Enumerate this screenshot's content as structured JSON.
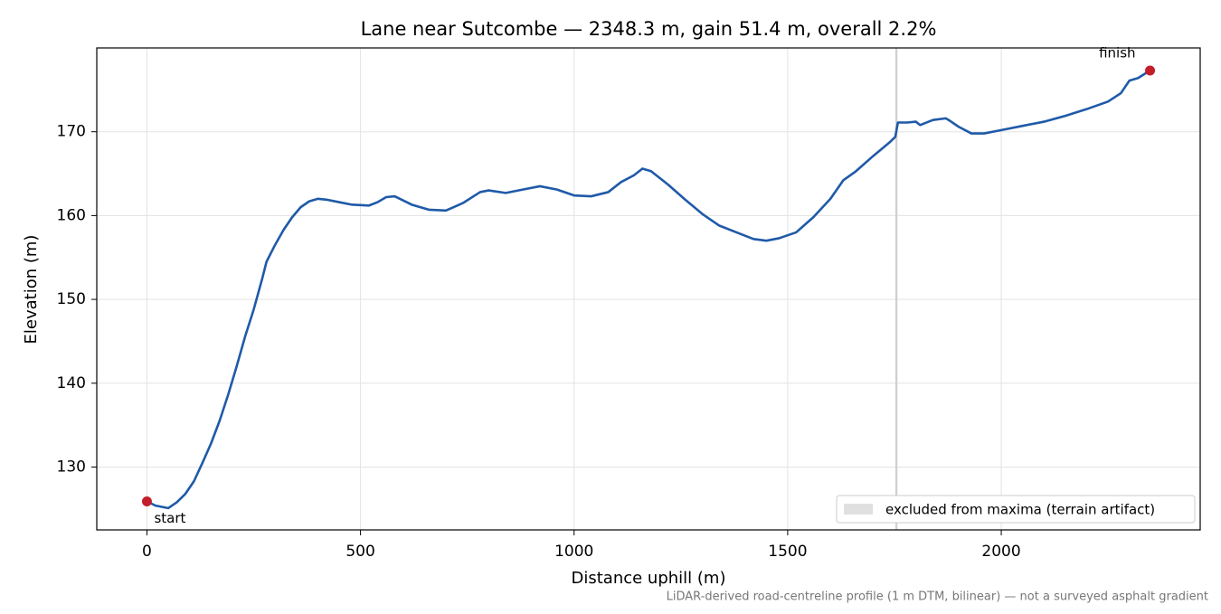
{
  "chart_data": {
    "type": "line",
    "title": "Lane near Sutcombe — 2348.3 m, gain 51.4 m, overall 2.2%",
    "xlabel": "Distance uphill (m)",
    "ylabel": "Elevation (m)",
    "footnote": "LiDAR-derived road-centreline profile (1 m DTM, bilinear) — not a surveyed asphalt gradient",
    "xlim": [
      -117.4,
      2465.7
    ],
    "ylim": [
      122.5,
      180.0
    ],
    "xticks": [
      0,
      500,
      1000,
      1500,
      2000
    ],
    "yticks": [
      130,
      140,
      150,
      160,
      170
    ],
    "grid": true,
    "legend": "lower right",
    "series": [
      {
        "name": "elevation",
        "color": "#1f5aa8",
        "x": [
          0,
          20,
          40,
          50,
          70,
          90,
          110,
          130,
          150,
          170,
          190,
          210,
          230,
          250,
          270,
          280,
          300,
          320,
          340,
          360,
          380,
          400,
          420,
          450,
          480,
          520,
          540,
          560,
          580,
          600,
          620,
          660,
          700,
          740,
          780,
          800,
          840,
          880,
          920,
          960,
          1000,
          1040,
          1080,
          1110,
          1140,
          1160,
          1180,
          1220,
          1260,
          1300,
          1340,
          1380,
          1420,
          1450,
          1480,
          1520,
          1560,
          1600,
          1630,
          1660,
          1700,
          1740,
          1752,
          1758,
          1780,
          1800,
          1810,
          1840,
          1870,
          1880,
          1900,
          1930,
          1960,
          2000,
          2050,
          2100,
          2150,
          2200,
          2250,
          2280,
          2300,
          2320,
          2348.3
        ],
        "values": [
          125.9,
          125.4,
          125.2,
          125.1,
          125.8,
          126.8,
          128.3,
          130.5,
          132.8,
          135.5,
          138.6,
          142.0,
          145.6,
          148.8,
          152.5,
          154.5,
          156.5,
          158.3,
          159.8,
          161.0,
          161.7,
          162.0,
          161.9,
          161.6,
          161.3,
          161.2,
          161.6,
          162.2,
          162.3,
          161.8,
          161.3,
          160.7,
          160.6,
          161.5,
          162.8,
          163.0,
          162.7,
          163.1,
          163.5,
          163.1,
          162.4,
          162.3,
          162.8,
          164.0,
          164.8,
          165.6,
          165.3,
          163.7,
          161.9,
          160.2,
          158.8,
          158.0,
          157.2,
          157.0,
          157.3,
          158.0,
          159.8,
          162.0,
          164.2,
          165.3,
          167.1,
          168.8,
          169.4,
          171.1,
          171.1,
          171.2,
          170.8,
          171.4,
          171.6,
          171.3,
          170.6,
          169.8,
          169.8,
          170.2,
          170.7,
          171.2,
          171.9,
          172.7,
          173.6,
          174.6,
          176.1,
          176.4,
          177.3
        ]
      }
    ],
    "points": [
      {
        "label": "start",
        "x": 0,
        "y": 125.9,
        "color": "#c41e2a"
      },
      {
        "label": "finish",
        "x": 2348.3,
        "y": 177.3,
        "color": "#c41e2a"
      }
    ],
    "excluded_span": {
      "name": "excluded from maxima (terrain artifact)",
      "x": [
        1752,
        1757
      ],
      "color": "#cccccc"
    }
  }
}
